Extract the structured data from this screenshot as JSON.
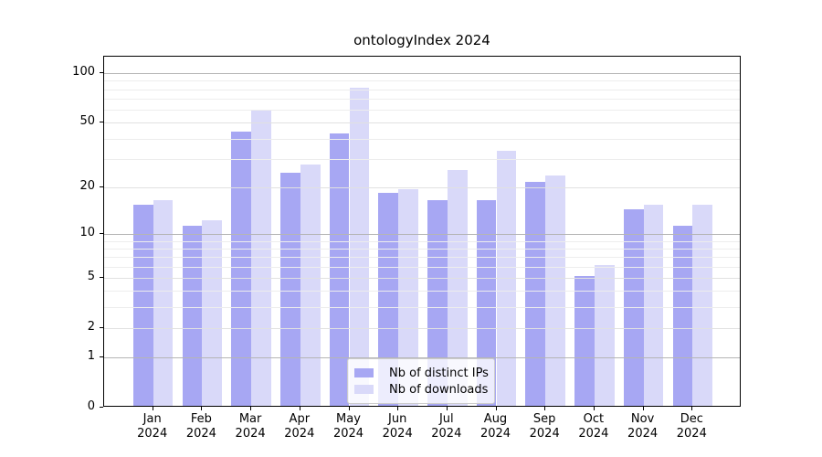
{
  "title": "ontologyIndex 2024",
  "chart_data": {
    "type": "bar",
    "title": "ontologyIndex 2024",
    "categories": [
      "Jan 2024",
      "Feb 2024",
      "Mar 2024",
      "Apr 2024",
      "May 2024",
      "Jun 2024",
      "Jul 2024",
      "Aug 2024",
      "Sep 2024",
      "Oct 2024",
      "Nov 2024",
      "Dec 2024"
    ],
    "series": [
      {
        "name": "Nb of distinct IPs",
        "color": "#a7a7f3",
        "values": [
          15,
          11,
          43,
          24,
          42,
          18,
          16,
          16,
          21,
          5,
          14,
          11
        ]
      },
      {
        "name": "Nb of downloads",
        "color": "#d9d9f9",
        "values": [
          16,
          12,
          58,
          27,
          80,
          19,
          25,
          33,
          23,
          6,
          15,
          15
        ]
      }
    ],
    "xlabel": "",
    "ylabel": "",
    "yscale": "symlog-log1p",
    "yticks": [
      0,
      1,
      2,
      5,
      10,
      20,
      50,
      100
    ],
    "ylim": [
      0,
      126
    ],
    "grid": true,
    "legend_position": "lower center"
  },
  "legend": {
    "items": [
      {
        "label": "Nb of distinct IPs"
      },
      {
        "label": "Nb of downloads"
      }
    ]
  },
  "colors": {
    "bar_distinct_ips": "#a7a7f3",
    "bar_downloads": "#d9d9f9",
    "grid_major": "#b5b5b5",
    "grid_mid": "#e1e1e1",
    "grid_minor": "#ededed",
    "spine": "#000000",
    "text": "#000000",
    "legend_border": "#cccccc"
  }
}
